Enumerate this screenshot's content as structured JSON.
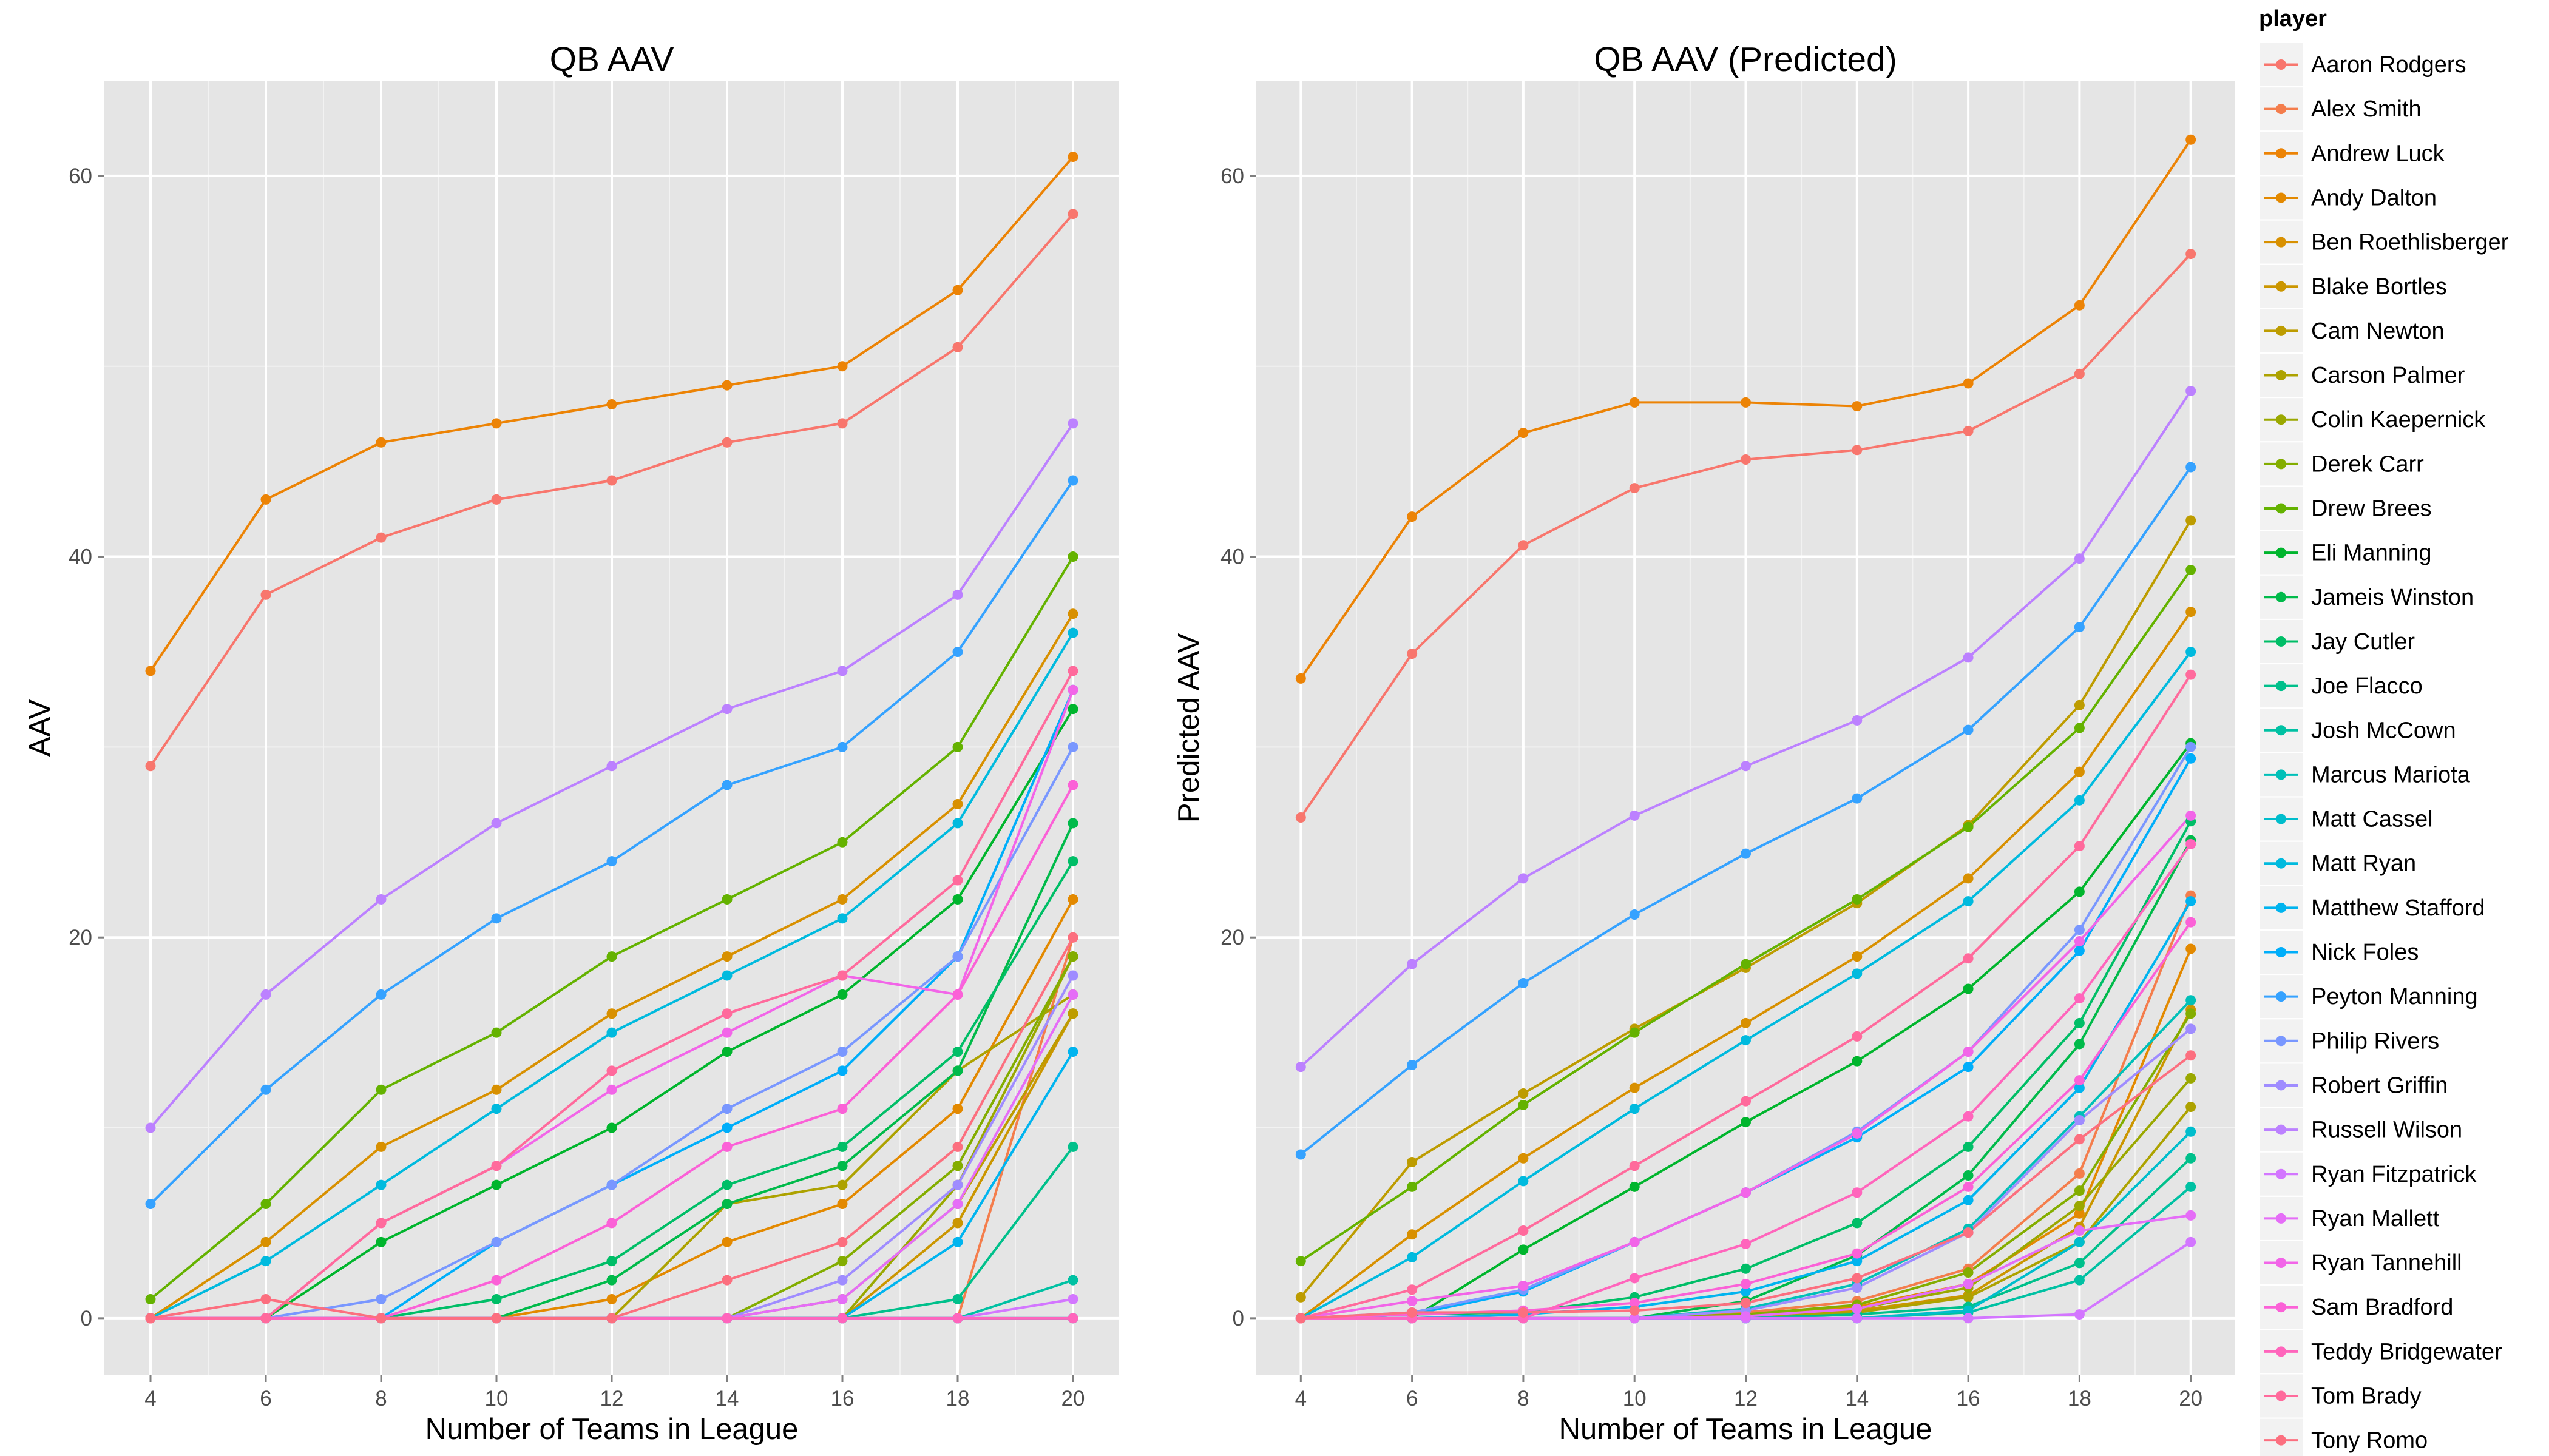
{
  "legend": {
    "title": "player",
    "placement": "right"
  },
  "players": [
    {
      "name": "Aaron Rodgers",
      "color": "#F8766D"
    },
    {
      "name": "Alex Smith",
      "color": "#F47D4C"
    },
    {
      "name": "Andrew Luck",
      "color": "#EC8305"
    },
    {
      "name": "Andy Dalton",
      "color": "#E38900"
    },
    {
      "name": "Ben Roethlisberger",
      "color": "#D89000"
    },
    {
      "name": "Blake Bortles",
      "color": "#CB9600"
    },
    {
      "name": "Cam Newton",
      "color": "#BD9C00"
    },
    {
      "name": "Carson Palmer",
      "color": "#ADA200"
    },
    {
      "name": "Colin Kaepernick",
      "color": "#9AA800"
    },
    {
      "name": "Derek Carr",
      "color": "#83AD00"
    },
    {
      "name": "Drew Brees",
      "color": "#64B200"
    },
    {
      "name": "Eli Manning",
      "color": "#00B52D"
    },
    {
      "name": "Jameis Winston",
      "color": "#00BA4A"
    },
    {
      "name": "Jay Cutler",
      "color": "#00BE67"
    },
    {
      "name": "Joe Flacco",
      "color": "#00C08B"
    },
    {
      "name": "Josh McCown",
      "color": "#00C1A3"
    },
    {
      "name": "Marcus Mariota",
      "color": "#00C0B8"
    },
    {
      "name": "Matt Cassel",
      "color": "#00BDCC"
    },
    {
      "name": "Matt Ryan",
      "color": "#00BADE"
    },
    {
      "name": "Matthew Stafford",
      "color": "#00B4EF"
    },
    {
      "name": "Nick Foles",
      "color": "#00AEFA"
    },
    {
      "name": "Peyton Manning",
      "color": "#35A2FF"
    },
    {
      "name": "Philip Rivers",
      "color": "#7997FF"
    },
    {
      "name": "Robert Griffin",
      "color": "#9F8CFF"
    },
    {
      "name": "Russell Wilson",
      "color": "#BC81FF"
    },
    {
      "name": "Ryan Fitzpatrick",
      "color": "#D376FF"
    },
    {
      "name": "Ryan Mallett",
      "color": "#E56DF7"
    },
    {
      "name": "Ryan Tannehill",
      "color": "#F265E8"
    },
    {
      "name": "Sam Bradford",
      "color": "#FB61D7"
    },
    {
      "name": "Teddy Bridgewater",
      "color": "#FF65BC"
    },
    {
      "name": "Tom Brady",
      "color": "#FF6A9C"
    },
    {
      "name": "Tony Romo",
      "color": "#FC6F7F"
    }
  ],
  "chart_data": [
    {
      "type": "line",
      "title": "QB AAV",
      "xlabel": "Number of Teams in League",
      "ylabel": "AAV",
      "x": [
        4,
        6,
        8,
        10,
        12,
        14,
        16,
        18,
        20
      ],
      "xlim": [
        3.2,
        20.8
      ],
      "ylim": [
        -3,
        65
      ],
      "xticks": [
        4,
        6,
        8,
        10,
        12,
        14,
        16,
        18,
        20
      ],
      "yticks": [
        0,
        20,
        40,
        60
      ],
      "grid": true,
      "series": [
        {
          "name": "Aaron Rodgers",
          "values": [
            29,
            38,
            41,
            43,
            44,
            46,
            47,
            51,
            58
          ]
        },
        {
          "name": "Alex Smith",
          "values": [
            0,
            0,
            0,
            0,
            0,
            0,
            0,
            0,
            20
          ]
        },
        {
          "name": "Andrew Luck",
          "values": [
            34,
            43,
            46,
            47,
            48,
            49,
            50,
            54,
            61
          ]
        },
        {
          "name": "Andy Dalton",
          "values": [
            0,
            0,
            0,
            0,
            1,
            4,
            6,
            11,
            22
          ]
        },
        {
          "name": "Ben Roethlisberger",
          "values": [
            0,
            4,
            9,
            12,
            16,
            19,
            22,
            27,
            37
          ]
        },
        {
          "name": "Blake Bortles",
          "values": [
            0,
            0,
            0,
            0,
            0,
            0,
            0,
            5,
            16
          ]
        },
        {
          "name": "Cam Newton",
          "values": [
            0,
            0,
            0,
            0,
            0,
            0,
            1,
            6,
            16
          ]
        },
        {
          "name": "Carson Palmer",
          "values": [
            0,
            0,
            0,
            0,
            0,
            6,
            7,
            13,
            17
          ]
        },
        {
          "name": "Colin Kaepernick",
          "values": [
            0,
            0,
            0,
            0,
            0,
            0,
            0,
            7,
            19
          ]
        },
        {
          "name": "Derek Carr",
          "values": [
            0,
            0,
            0,
            0,
            0,
            0,
            3,
            8,
            19
          ]
        },
        {
          "name": "Drew Brees",
          "values": [
            1,
            6,
            12,
            15,
            19,
            22,
            25,
            30,
            40
          ]
        },
        {
          "name": "Eli Manning",
          "values": [
            0,
            0,
            4,
            7,
            10,
            14,
            17,
            22,
            32
          ]
        },
        {
          "name": "Jameis Winston",
          "values": [
            0,
            0,
            0,
            0,
            2,
            6,
            8,
            13,
            26
          ]
        },
        {
          "name": "Jay Cutler",
          "values": [
            0,
            0,
            0,
            1,
            3,
            7,
            9,
            14,
            24
          ]
        },
        {
          "name": "Joe Flacco",
          "values": [
            0,
            0,
            0,
            0,
            0,
            0,
            0,
            1,
            9
          ]
        },
        {
          "name": "Josh McCown",
          "values": [
            0,
            0,
            0,
            0,
            0,
            0,
            0,
            0,
            2
          ]
        },
        {
          "name": "Marcus Mariota",
          "values": [
            0,
            0,
            0,
            0,
            0,
            0,
            0,
            0,
            0
          ]
        },
        {
          "name": "Matt Cassel",
          "values": [
            0,
            0,
            0,
            0,
            0,
            0,
            0,
            0,
            0
          ]
        },
        {
          "name": "Matt Ryan",
          "values": [
            0,
            3,
            7,
            11,
            15,
            18,
            21,
            26,
            36
          ]
        },
        {
          "name": "Matthew Stafford",
          "values": [
            0,
            0,
            0,
            0,
            0,
            0,
            0,
            4,
            14
          ]
        },
        {
          "name": "Nick Foles",
          "values": [
            0,
            0,
            0,
            4,
            7,
            10,
            13,
            19,
            33
          ]
        },
        {
          "name": "Peyton Manning",
          "values": [
            6,
            12,
            17,
            21,
            24,
            28,
            30,
            35,
            44
          ]
        },
        {
          "name": "Philip Rivers",
          "values": [
            0,
            0,
            1,
            4,
            7,
            11,
            14,
            19,
            30
          ]
        },
        {
          "name": "Robert Griffin",
          "values": [
            0,
            0,
            0,
            0,
            0,
            0,
            2,
            7,
            18
          ]
        },
        {
          "name": "Russell Wilson",
          "values": [
            10,
            17,
            22,
            26,
            29,
            32,
            34,
            38,
            47
          ]
        },
        {
          "name": "Ryan Fitzpatrick",
          "values": [
            0,
            0,
            0,
            0,
            0,
            0,
            0,
            0,
            1
          ]
        },
        {
          "name": "Ryan Mallett",
          "values": [
            0,
            0,
            0,
            0,
            0,
            0,
            1,
            6,
            17
          ]
        },
        {
          "name": "Ryan Tannehill",
          "values": [
            0,
            0,
            5,
            8,
            12,
            15,
            18,
            17,
            33
          ]
        },
        {
          "name": "Sam Bradford",
          "values": [
            0,
            0,
            0,
            2,
            5,
            9,
            11,
            17,
            28
          ]
        },
        {
          "name": "Teddy Bridgewater",
          "values": [
            0,
            0,
            0,
            0,
            0,
            0,
            0,
            0,
            0
          ]
        },
        {
          "name": "Tom Brady",
          "values": [
            0,
            0,
            5,
            8,
            13,
            16,
            18,
            23,
            34
          ]
        },
        {
          "name": "Tony Romo",
          "values": [
            0,
            1,
            0,
            0,
            0,
            2,
            4,
            9,
            20
          ]
        }
      ]
    },
    {
      "type": "line",
      "title": "QB AAV (Predicted)",
      "xlabel": "Number of Teams in League",
      "ylabel": "Predicted AAV",
      "x": [
        4,
        6,
        8,
        10,
        12,
        14,
        16,
        18,
        20
      ],
      "xlim": [
        3.2,
        20.8
      ],
      "ylim": [
        -3,
        65
      ],
      "xticks": [
        4,
        6,
        8,
        10,
        12,
        14,
        16,
        18,
        20
      ],
      "yticks": [
        0,
        20,
        40,
        60
      ],
      "grid": true,
      "series": [
        {
          "name": "Aaron Rodgers",
          "values": [
            26.3,
            34.9,
            40.6,
            43.6,
            45.1,
            45.6,
            46.6,
            49.6,
            55.9
          ]
        },
        {
          "name": "Alex Smith",
          "values": [
            0,
            0,
            0,
            0,
            0.3,
            0.9,
            2.6,
            7.6,
            22.2
          ]
        },
        {
          "name": "Andrew Luck",
          "values": [
            33.6,
            42.1,
            46.5,
            48.1,
            48.1,
            47.9,
            49.1,
            53.2,
            61.9
          ]
        },
        {
          "name": "Andy Dalton",
          "values": [
            0,
            0,
            0,
            0,
            0.2,
            0.6,
            1.8,
            5.5,
            19.4
          ]
        },
        {
          "name": "Ben Roethlisberger",
          "values": [
            0,
            4.4,
            8.4,
            12.1,
            15.5,
            19,
            23.1,
            28.7,
            37.1
          ]
        },
        {
          "name": "Blake Bortles",
          "values": [
            0,
            0,
            0,
            0,
            0.1,
            0.4,
            1.2,
            4.8,
            16.2
          ]
        },
        {
          "name": "Cam Newton",
          "values": [
            1.1,
            8.2,
            11.8,
            15.2,
            18.4,
            21.8,
            25.9,
            32.2,
            41.9
          ]
        },
        {
          "name": "Carson Palmer",
          "values": [
            0,
            0,
            0,
            0,
            0.1,
            0.3,
            1.1,
            4,
            11.1
          ]
        },
        {
          "name": "Colin Kaepernick",
          "values": [
            0,
            0,
            0,
            0,
            0.2,
            0.5,
            1.6,
            5.9,
            12.6
          ]
        },
        {
          "name": "Derek Carr",
          "values": [
            0,
            0,
            0,
            0,
            0.2,
            0.7,
            2.4,
            6.7,
            16
          ]
        },
        {
          "name": "Drew Brees",
          "values": [
            3,
            6.9,
            11.2,
            15,
            18.6,
            22,
            25.8,
            31,
            39.3
          ]
        },
        {
          "name": "Eli Manning",
          "values": [
            0,
            0,
            3.6,
            6.9,
            10.3,
            13.5,
            17.3,
            22.4,
            30.2
          ]
        },
        {
          "name": "Jameis Winston",
          "values": [
            0,
            0,
            0,
            0,
            0.9,
            3.3,
            7.5,
            14.4,
            25.1
          ]
        },
        {
          "name": "Jay Cutler",
          "values": [
            0,
            0.2,
            0.3,
            1.1,
            2.6,
            5,
            9,
            15.5,
            26.1
          ]
        },
        {
          "name": "Joe Flacco",
          "values": [
            0,
            0,
            0,
            0,
            0,
            0.2,
            0.6,
            2.9,
            8.4
          ]
        },
        {
          "name": "Josh McCown",
          "values": [
            0,
            0,
            0,
            0,
            0,
            0,
            0.3,
            2,
            6.9
          ]
        },
        {
          "name": "Marcus Mariota",
          "values": [
            0,
            0,
            0,
            0,
            0.5,
            1.8,
            4.7,
            10.6,
            16.7
          ]
        },
        {
          "name": "Matt Cassel",
          "values": [
            0,
            0,
            0,
            0,
            0,
            0,
            0.4,
            4,
            9.8
          ]
        },
        {
          "name": "Matt Ryan",
          "values": [
            0,
            3.2,
            7.2,
            11,
            14.6,
            18.1,
            21.9,
            27.2,
            35
          ]
        },
        {
          "name": "Matthew Stafford",
          "values": [
            0,
            0,
            0.2,
            0.6,
            1.4,
            3,
            6.2,
            12.1,
            21.9
          ]
        },
        {
          "name": "Nick Foles",
          "values": [
            0,
            0.2,
            1.4,
            4,
            6.6,
            9.5,
            13.2,
            19.3,
            29.4
          ]
        },
        {
          "name": "Peyton Manning",
          "values": [
            8.6,
            13.3,
            17.6,
            21.2,
            24.4,
            27.3,
            30.9,
            36.3,
            44.7
          ]
        },
        {
          "name": "Philip Rivers",
          "values": [
            0,
            0.3,
            1.5,
            4,
            6.6,
            9.8,
            14,
            20.4,
            30
          ]
        },
        {
          "name": "Robert Griffin",
          "values": [
            0,
            0,
            0,
            0,
            0.4,
            1.6,
            4.5,
            10.4,
            15.2
          ]
        },
        {
          "name": "Russell Wilson",
          "values": [
            13.2,
            18.6,
            23.1,
            26.4,
            29,
            31.4,
            34.7,
            39.9,
            48.7
          ]
        },
        {
          "name": "Ryan Fitzpatrick",
          "values": [
            0,
            0,
            0,
            0,
            0,
            0,
            0,
            0.2,
            4
          ]
        },
        {
          "name": "Ryan Mallett",
          "values": [
            0,
            0,
            0,
            0,
            0.1,
            0.5,
            1.8,
            4.6,
            5.4
          ]
        },
        {
          "name": "Ryan Tannehill",
          "values": [
            0,
            0.9,
            1.7,
            4,
            6.6,
            9.7,
            14,
            19.8,
            26.4
          ]
        },
        {
          "name": "Sam Bradford",
          "values": [
            0,
            0.2,
            0.4,
            0.8,
            1.8,
            3.4,
            6.9,
            12.5,
            20.8
          ]
        },
        {
          "name": "Teddy Bridgewater",
          "values": [
            0,
            0,
            0,
            2.1,
            3.9,
            6.6,
            10.6,
            16.8,
            24.9
          ]
        },
        {
          "name": "Tom Brady",
          "values": [
            0,
            1.5,
            4.6,
            8,
            11.4,
            14.8,
            18.9,
            24.8,
            33.8
          ]
        },
        {
          "name": "Tony Romo",
          "values": [
            0,
            0.3,
            0.3,
            0.4,
            0.8,
            2.1,
            4.5,
            9.4,
            13.8
          ]
        }
      ]
    }
  ]
}
